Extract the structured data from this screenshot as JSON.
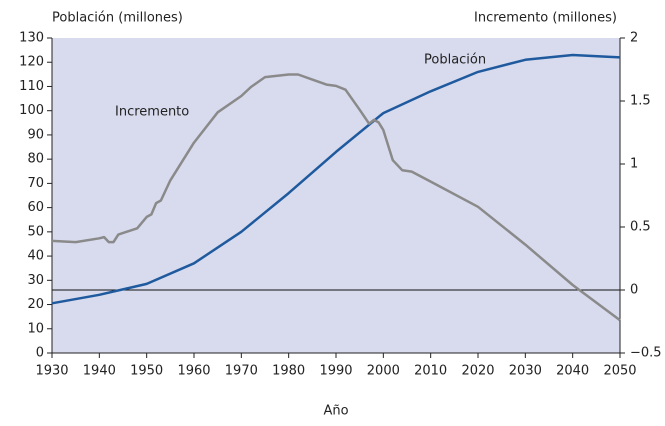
{
  "chart_data": {
    "type": "line",
    "ylabel": "Población (millones)",
    "y2label": "Incremento (millones)",
    "xlabel": "Año",
    "xlim": [
      1930,
      2050
    ],
    "xticks": [
      1930,
      1940,
      1950,
      1960,
      1970,
      1980,
      1990,
      2000,
      2010,
      2020,
      2030,
      2040,
      2050
    ],
    "ylim": [
      0,
      130
    ],
    "yticks": [
      0,
      10,
      20,
      30,
      40,
      50,
      60,
      70,
      80,
      90,
      100,
      110,
      120,
      130
    ],
    "y2lim": [
      -0.5,
      2
    ],
    "y2ticks": [
      {
        "value": -0.5,
        "label": "−0.5"
      },
      0,
      0.5,
      1,
      1.5,
      2
    ],
    "y2_reference_line": 0,
    "background": "#d8dbee",
    "series": [
      {
        "name": "Población",
        "color": "#1f5a9e",
        "axis": "y",
        "x": [
          1930,
          1940,
          1950,
          1960,
          1970,
          1980,
          1990,
          2000,
          2010,
          2020,
          2030,
          2040,
          2050
        ],
        "values": [
          20.5,
          24,
          28.5,
          37,
          50,
          66,
          83,
          99,
          108,
          116,
          121,
          123,
          122
        ]
      },
      {
        "name": "Incremento",
        "color": "#8a8a8a",
        "axis": "y2",
        "x": [
          1930,
          1935,
          1940,
          1941,
          1942,
          1943,
          1944,
          1948,
          1950,
          1951,
          1952,
          1953,
          1955,
          1960,
          1965,
          1970,
          1972,
          1975,
          1980,
          1982,
          1985,
          1988,
          1990,
          1992,
          1995,
          1997,
          1998,
          1999,
          2000,
          2002,
          2004,
          2006,
          2010,
          2020,
          2030,
          2040,
          2050
        ],
        "values": [
          0.39,
          0.38,
          0.41,
          0.42,
          0.38,
          0.38,
          0.44,
          0.49,
          0.58,
          0.6,
          0.69,
          0.71,
          0.87,
          1.17,
          1.41,
          1.54,
          1.61,
          1.69,
          1.71,
          1.71,
          1.67,
          1.63,
          1.62,
          1.59,
          1.43,
          1.32,
          1.35,
          1.33,
          1.27,
          1.03,
          0.95,
          0.94,
          0.86,
          0.66,
          0.36,
          0.04,
          -0.24
        ]
      }
    ]
  }
}
